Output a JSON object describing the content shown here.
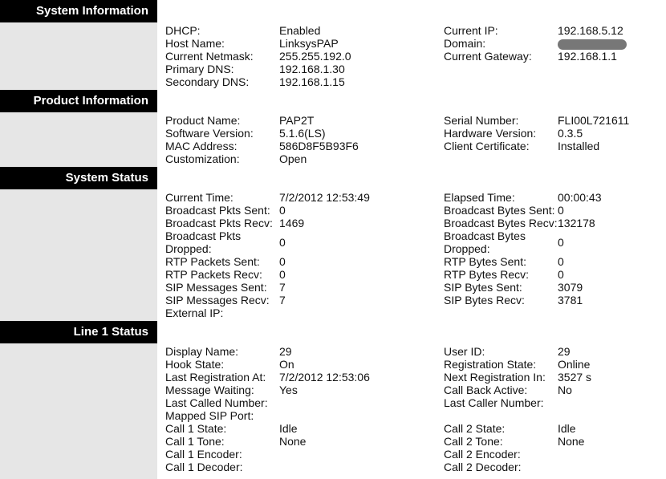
{
  "sections": [
    {
      "title": "System Information",
      "rows": [
        {
          "left": [
            "DHCP:",
            "Enabled"
          ],
          "right": [
            "Current IP:",
            "192.168.5.12"
          ]
        },
        {
          "left": [
            "Host Name:",
            "LinksysPAP"
          ],
          "right": [
            "Domain:"
          ]
        },
        {
          "left": [
            "Current Netmask:",
            "255.255.192.0"
          ],
          "right": [
            "Current Gateway:",
            "192.168.1.1"
          ]
        },
        {
          "left": [
            "Primary DNS:",
            "192.168.1.30"
          ]
        },
        {
          "left": [
            "Secondary DNS:",
            "192.168.1.15"
          ]
        }
      ]
    },
    {
      "title": "Product Information",
      "rows": [
        {
          "left": [
            "Product Name:",
            "PAP2T"
          ],
          "right": [
            "Serial Number:",
            "FLI00L721611"
          ]
        },
        {
          "left": [
            "Software Version:",
            "5.1.6(LS)"
          ],
          "right": [
            "Hardware Version:",
            "0.3.5"
          ]
        },
        {
          "left": [
            "MAC Address:",
            "586D8F5B93F6"
          ],
          "right": [
            "Client Certificate:",
            "Installed"
          ]
        },
        {
          "left": [
            "Customization:",
            "Open"
          ]
        }
      ]
    },
    {
      "title": "System Status",
      "rows": [
        {
          "left": [
            "Current Time:",
            "7/2/2012 12:53:49"
          ],
          "right": [
            "Elapsed Time:",
            "00:00:43"
          ]
        },
        {
          "left": [
            "Broadcast Pkts Sent:",
            "0"
          ],
          "right": [
            "Broadcast Bytes Sent:",
            "0"
          ]
        },
        {
          "left": [
            "Broadcast Pkts Recv:",
            "1469"
          ],
          "right": [
            "Broadcast Bytes Recv:",
            "132178"
          ]
        },
        {
          "left": [
            "Broadcast Pkts Dropped:",
            "0"
          ],
          "right": [
            "Broadcast Bytes Dropped:",
            "0"
          ]
        },
        {
          "left": [
            "RTP Packets Sent:",
            "0"
          ],
          "right": [
            "RTP Bytes Sent:",
            "0"
          ]
        },
        {
          "left": [
            "RTP Packets Recv:",
            "0"
          ],
          "right": [
            "RTP Bytes Recv:",
            "0"
          ]
        },
        {
          "left": [
            "SIP Messages Sent:",
            "7"
          ],
          "right": [
            "SIP Bytes Sent:",
            "3079"
          ]
        },
        {
          "left": [
            "SIP Messages Recv:",
            "7"
          ],
          "right": [
            "SIP Bytes Recv:",
            "3781"
          ]
        },
        {
          "left": [
            "External IP:"
          ]
        }
      ]
    },
    {
      "title": "Line 1 Status",
      "rows": [
        {
          "left": [
            "Display Name:",
            "29"
          ],
          "right": [
            "User ID:",
            "29"
          ]
        },
        {
          "left": [
            "Hook State:",
            "On"
          ],
          "right": [
            "Registration State:",
            "Online"
          ]
        },
        {
          "left": [
            "Last Registration At:",
            "7/2/2012 12:53:06"
          ],
          "right": [
            "Next Registration In:",
            "3527 s"
          ]
        },
        {
          "left": [
            "Message Waiting:",
            "Yes"
          ],
          "right": [
            "Call Back Active:",
            "No"
          ]
        },
        {
          "left": [
            "Last Called Number:"
          ],
          "right": [
            "Last Caller Number:"
          ]
        },
        {
          "left": [
            "Mapped SIP Port:"
          ]
        },
        {
          "left": [
            "Call 1 State:",
            "Idle"
          ],
          "right": [
            "Call 2 State:",
            "Idle"
          ]
        },
        {
          "left": [
            "Call 1 Tone:",
            "None"
          ],
          "right": [
            "Call 2 Tone:",
            "None"
          ]
        },
        {
          "left": [
            "Call 1 Encoder:"
          ],
          "right": [
            "Call 2 Encoder:"
          ]
        },
        {
          "left": [
            "Call 1 Decoder:"
          ],
          "right": [
            "Call 2 Decoder:"
          ]
        }
      ]
    }
  ]
}
